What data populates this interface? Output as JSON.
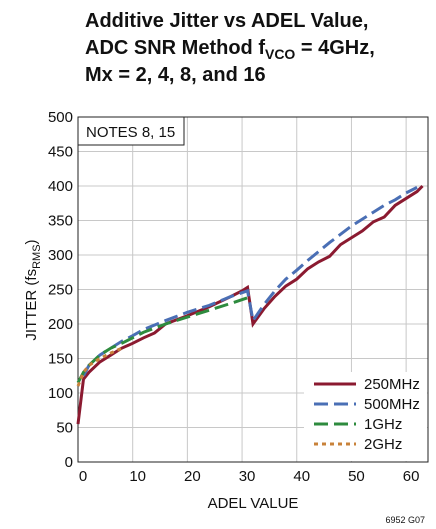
{
  "chart_data": {
    "type": "line",
    "title": [
      "Additive Jitter vs ADEL Value,",
      "ADC SNR Method f",
      "VCO",
      " = 4GHz,",
      "Mx = 2, 4, 8, and 16"
    ],
    "ylabel": [
      "JITTER (fs",
      "RMS",
      ")"
    ],
    "xlabel": "ADEL VALUE",
    "annotation": "NOTES 8, 15",
    "footnote": "6952 G07",
    "xlim": [
      0,
      64
    ],
    "xticks": [
      0,
      10,
      20,
      30,
      40,
      50,
      60
    ],
    "ylim": [
      0,
      500
    ],
    "yticks": [
      0,
      50,
      100,
      150,
      200,
      250,
      300,
      350,
      400,
      450,
      500
    ],
    "grid": true,
    "legend": "lower right",
    "series": [
      {
        "name": "250MHz",
        "color": "#8b1a30",
        "style": "solid",
        "x": [
          0,
          1,
          2,
          4,
          6,
          8,
          10,
          12,
          14,
          16,
          20,
          24,
          28,
          30,
          31,
          32,
          34,
          36,
          38,
          40,
          42,
          44,
          46,
          48,
          50,
          52,
          54,
          56,
          58,
          60,
          62,
          63
        ],
        "values": [
          55,
          120,
          130,
          145,
          155,
          165,
          172,
          180,
          187,
          200,
          212,
          225,
          240,
          248,
          253,
          200,
          222,
          240,
          255,
          265,
          280,
          290,
          298,
          315,
          325,
          335,
          348,
          355,
          372,
          382,
          392,
          400
        ]
      },
      {
        "name": "500MHz",
        "color": "#4a6fb5",
        "style": "dashed",
        "x": [
          1,
          2,
          4,
          6,
          8,
          10,
          12,
          16,
          20,
          24,
          28,
          31,
          32,
          34,
          36,
          38,
          40,
          42,
          44,
          46,
          48,
          50,
          52,
          54,
          56,
          58,
          60,
          62
        ],
        "values": [
          125,
          140,
          155,
          165,
          175,
          183,
          192,
          205,
          217,
          227,
          240,
          248,
          205,
          228,
          248,
          265,
          278,
          292,
          305,
          318,
          330,
          342,
          352,
          362,
          372,
          380,
          390,
          398
        ]
      },
      {
        "name": "1GHz",
        "color": "#2e8b3e",
        "style": "dashed",
        "x": [
          0,
          1,
          2,
          4,
          6,
          8,
          10,
          12,
          16,
          20,
          24,
          28,
          31
        ],
        "values": [
          115,
          130,
          140,
          155,
          165,
          172,
          180,
          188,
          200,
          210,
          220,
          230,
          238
        ]
      },
      {
        "name": "2GHz",
        "color": "#c8823a",
        "style": "dotted",
        "x": [
          0,
          1,
          2,
          4,
          6,
          8
        ],
        "values": [
          110,
          130,
          140,
          150,
          158,
          165
        ]
      }
    ]
  }
}
